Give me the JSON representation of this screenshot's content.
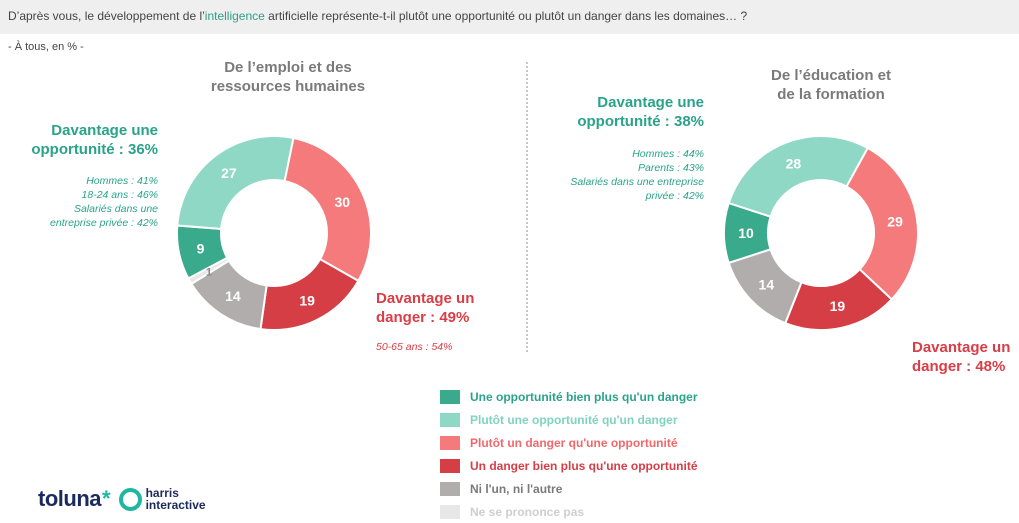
{
  "header": {
    "question_prefix": "D’après vous, le développement de l’",
    "question_highlight": "intelligence",
    "question_suffix": " artificielle représente-t-il plutôt une opportunité ou plutôt un danger dans les domaines… ?",
    "subtitle": "- À tous, en % -"
  },
  "colors": {
    "bien_plus_opportunite": "#3aaa8c",
    "plutot_opportunite": "#8ed8c5",
    "plutot_danger": "#f47a7c",
    "bien_plus_danger": "#d63e46",
    "ni_lun_ni_lautre": "#b1adad",
    "nsp": "#e7e7e7"
  },
  "chart_data": [
    {
      "type": "pie",
      "title_line1": "De l’emploi et des",
      "title_line2": "ressources humaines",
      "categories": [
        "Une opportunité bien plus qu'un danger",
        "Plutôt une opportunité qu'un danger",
        "Plutôt un danger qu'une opportunité",
        "Un danger bien plus qu'une opportunité",
        "Ni l'un, ni l'autre",
        "Ne se prononce pas"
      ],
      "values": [
        9,
        27,
        30,
        19,
        14,
        1
      ],
      "data_labels": [
        "9",
        "27",
        "30",
        "19",
        "14",
        "1"
      ],
      "opportunity_line1": "Davantage une",
      "opportunity_line2": "opportunité : 36%",
      "opportunity_details": [
        "Hommes : 41%",
        "18-24 ans : 46%",
        "Salariés dans une",
        "entreprise privée : 42%"
      ],
      "danger_line1": "Davantage un",
      "danger_line2": "danger : 49%",
      "danger_details": [
        "50-65 ans : 54%"
      ]
    },
    {
      "type": "pie",
      "title_line1": "De l’éducation et",
      "title_line2": "de la formation",
      "categories": [
        "Une opportunité bien plus qu'un danger",
        "Plutôt une opportunité qu'un danger",
        "Plutôt un danger qu'une opportunité",
        "Un danger bien plus qu'une opportunité",
        "Ni l'un, ni l'autre",
        "Ne se prononce pas"
      ],
      "values": [
        10,
        28,
        29,
        19,
        14,
        0
      ],
      "data_labels": [
        "10",
        "28",
        "29",
        "19",
        "14",
        ""
      ],
      "opportunity_line1": "Davantage une",
      "opportunity_line2": "opportunité : 38%",
      "opportunity_details": [
        "Hommes : 44%",
        "Parents : 43%",
        "Salariés dans une entreprise",
        "privée : 42%"
      ],
      "danger_line1": "Davantage un",
      "danger_line2": "danger : 48%",
      "danger_details": []
    }
  ],
  "legend": {
    "items": [
      {
        "label": "Une opportunité bien plus qu'un danger",
        "color": "#3aaa8c",
        "text_color": "#2aa38a"
      },
      {
        "label": "Plutôt une opportunité qu'un danger",
        "color": "#8ed8c5",
        "text_color": "#7fd3bf"
      },
      {
        "label": "Plutôt un danger qu'une opportunité",
        "color": "#f47a7c",
        "text_color": "#f0686c"
      },
      {
        "label": "Un danger bien plus qu'une opportunité",
        "color": "#d63e46",
        "text_color": "#d63e46"
      },
      {
        "label": "Ni l'un, ni l'autre",
        "color": "#b1adad",
        "text_color": "#7a7a7a"
      },
      {
        "label": "Ne se prononce pas",
        "color": "#e7e7e7",
        "text_color": "#cfcfcf"
      }
    ]
  },
  "logo": {
    "toluna": "toluna",
    "harris_line1": "harris",
    "harris_line2": "interactive"
  }
}
